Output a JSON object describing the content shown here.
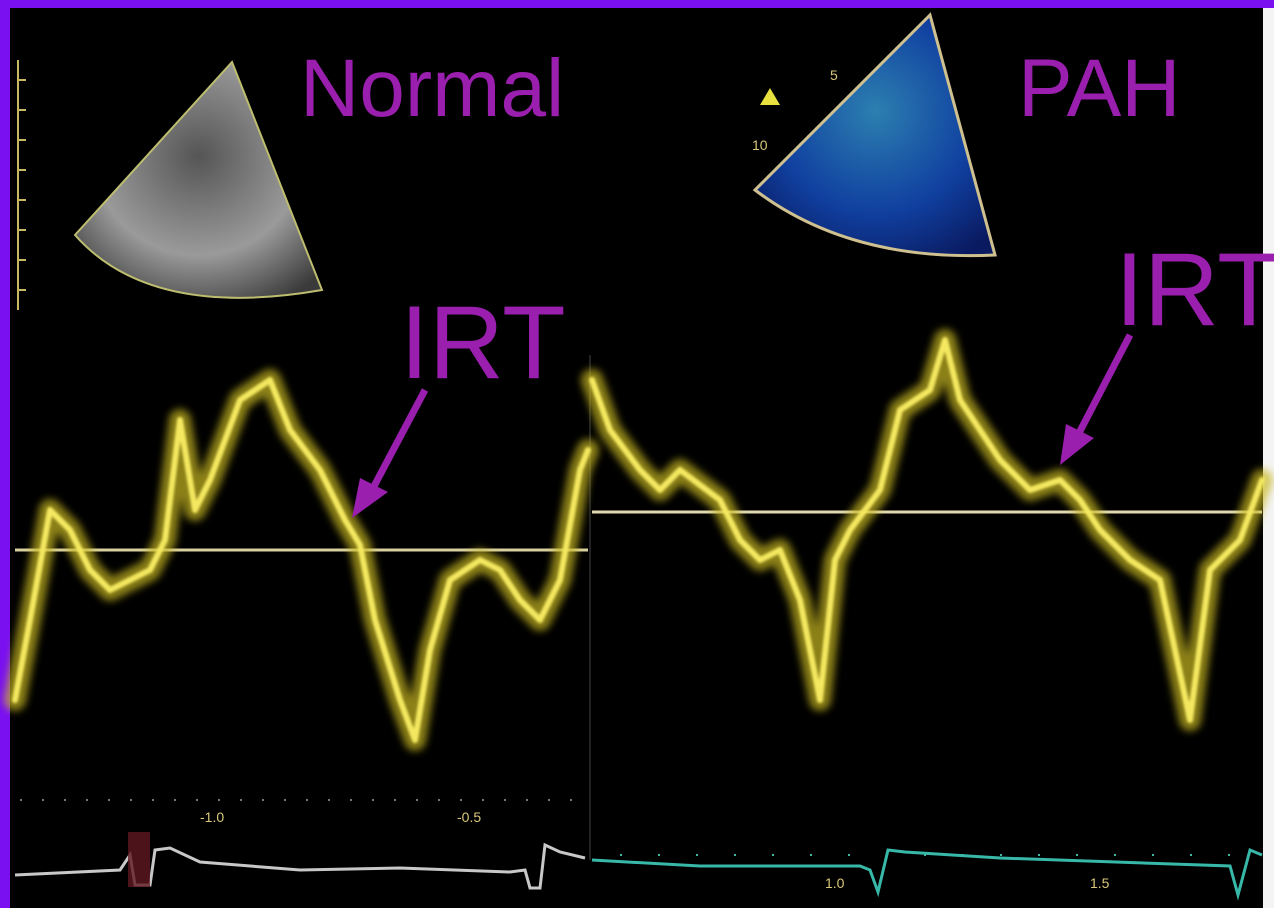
{
  "panels": [
    {
      "label": "Normal",
      "annotation": "IRT",
      "scale_labels": [
        "-1.0",
        "-0.5"
      ]
    },
    {
      "label": "PAH",
      "annotation": "IRT",
      "depth_labels": [
        "5",
        "10"
      ],
      "scale_labels": [
        "1.0",
        "1.5"
      ]
    }
  ]
}
